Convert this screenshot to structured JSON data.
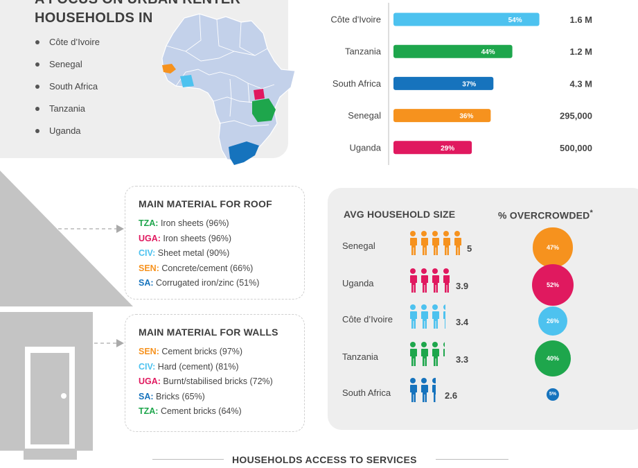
{
  "intro": {
    "title_line1": "A FOCUS ON URBAN RENTER",
    "title_line2": "HOUSEHOLDS IN",
    "countries": [
      "Côte d’Ivoire",
      "Senegal",
      "South Africa",
      "Tanzania",
      "Uganda"
    ]
  },
  "colors": {
    "civ": "#4dc2ef",
    "tza": "#1ea64c",
    "sa": "#1673bd",
    "sen": "#f6921e",
    "uga": "#e0195f",
    "map": "#c3d1ea",
    "gray": "#c4c4c4"
  },
  "chart_data": {
    "type": "bar",
    "orientation": "horizontal",
    "categories": [
      "Côte d'Ivoire",
      "Tanzania",
      "South Africa",
      "Senegal",
      "Uganda"
    ],
    "values": [
      54,
      44,
      37,
      36,
      29
    ],
    "value_labels": [
      "54%",
      "44%",
      "37%",
      "36%",
      "29%"
    ],
    "totals": [
      "1.6 M",
      "1.2 M",
      "4.3 M",
      "295,000",
      "500,000"
    ],
    "colors": [
      "#4dc2ef",
      "#1ea64c",
      "#1673bd",
      "#f6921e",
      "#e0195f"
    ],
    "xlim": [
      0,
      100
    ]
  },
  "roof": {
    "title": "MAIN MATERIAL FOR ROOF",
    "items": [
      {
        "code": "TZA:",
        "text": " Iron sheets (96%)",
        "color": "#1ea64c"
      },
      {
        "code": "UGA:",
        "text": " Iron sheets (96%)",
        "color": "#e0195f"
      },
      {
        "code": "CIV:",
        "text": " Sheet metal (90%)",
        "color": "#4dc2ef"
      },
      {
        "code": "SEN:",
        "text": " Concrete/cement (66%)",
        "color": "#f6921e"
      },
      {
        "code": "SA:",
        "text": " Corrugated iron/zinc (51%)",
        "color": "#1673bd"
      }
    ]
  },
  "walls": {
    "title": "MAIN MATERIAL FOR WALLS",
    "items": [
      {
        "code": "SEN:",
        "text": " Cement bricks (97%)",
        "color": "#f6921e"
      },
      {
        "code": "CIV:",
        "text": " Hard (cement) (81%)",
        "color": "#4dc2ef"
      },
      {
        "code": "UGA:",
        "text": " Burnt/stabilised bricks (72%)",
        "color": "#e0195f"
      },
      {
        "code": "SA:",
        "text": " Bricks (65%)",
        "color": "#1673bd"
      },
      {
        "code": "TZA:",
        "text": " Cement bricks (64%)",
        "color": "#1ea64c"
      }
    ]
  },
  "household": {
    "size_title": "AVG HOUSEHOLD SIZE",
    "overcrowded_title": "% OVERCROWDED",
    "overcrowded_mark": "*",
    "rows": [
      {
        "country": "Senegal",
        "size": 5,
        "size_label": "5",
        "overcrowded": 47,
        "overcrowded_label": "47%",
        "color": "#f6921e"
      },
      {
        "country": "Uganda",
        "size": 3.9,
        "size_label": "3.9",
        "overcrowded": 52,
        "overcrowded_label": "52%",
        "color": "#e0195f"
      },
      {
        "country": "Côte d’Ivoire",
        "size": 3.4,
        "size_label": "3.4",
        "overcrowded": 26,
        "overcrowded_label": "26%",
        "color": "#4dc2ef"
      },
      {
        "country": "Tanzania",
        "size": 3.3,
        "size_label": "3.3",
        "overcrowded": 40,
        "overcrowded_label": "40%",
        "color": "#1ea64c"
      },
      {
        "country": "South Africa",
        "size": 2.6,
        "size_label": "2.6",
        "overcrowded": 5,
        "overcrowded_label": "5%",
        "color": "#1673bd"
      }
    ]
  },
  "footer": {
    "title": "HOUSEHOLDS ACCESS TO SERVICES"
  }
}
